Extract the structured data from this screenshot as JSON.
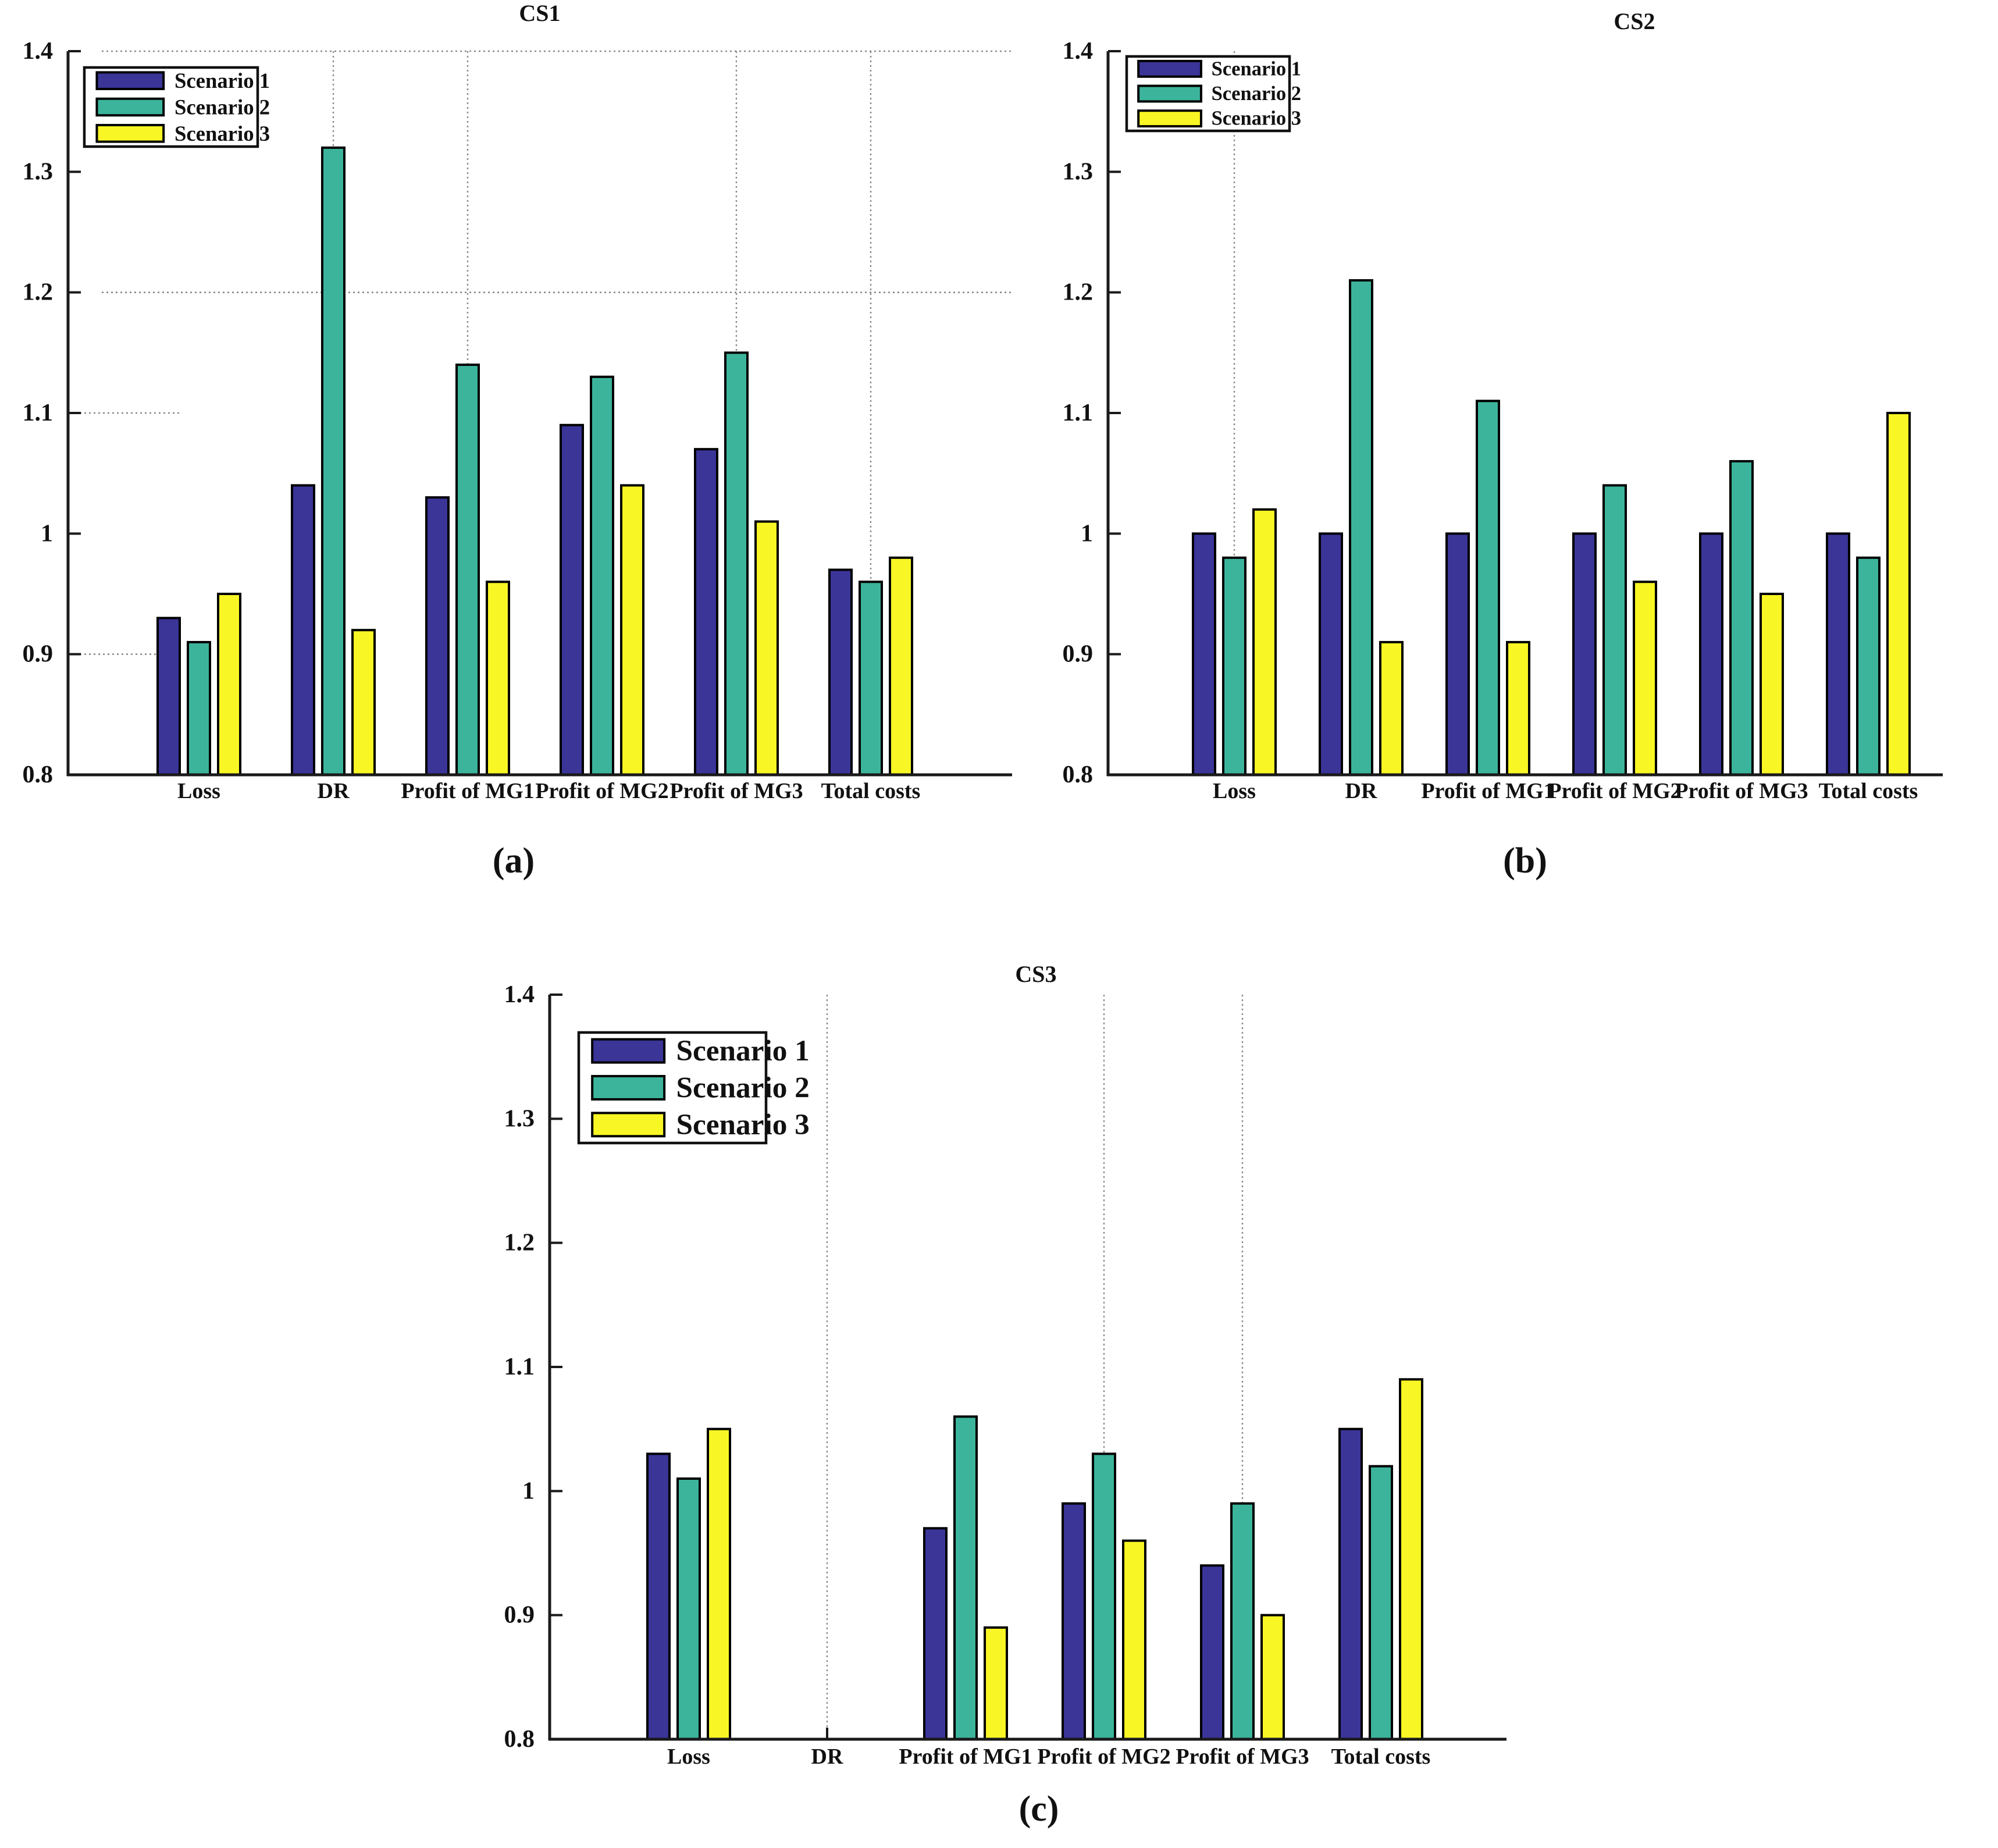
{
  "colors": {
    "scenario1": "#3B3598",
    "scenario2": "#3CB49C",
    "scenario3": "#F8F625",
    "bar_outline": "#000000",
    "axis": "#1a1a1a",
    "grid": "#8a8a8a",
    "background": "#ffffff"
  },
  "legend": {
    "entries": [
      "Scenario 1",
      "Scenario 2",
      "Scenario 3"
    ],
    "position": "top-left-inside"
  },
  "chart_data": [
    {
      "type": "bar",
      "title": "CS1",
      "panel_label": "(a)",
      "xlabel": "",
      "ylabel": "",
      "ylim": [
        0.8,
        1.4
      ],
      "yticks": [
        0.8,
        0.9,
        1.0,
        1.1,
        1.2,
        1.3,
        1.4
      ],
      "ytick_labels": [
        "0.8",
        "0.9",
        "1",
        "1.1",
        "1.2",
        "1.3",
        "1.4"
      ],
      "categories": [
        "Loss",
        "DR",
        "Profit of MG1",
        "Profit of MG2",
        "Profit of MG3",
        "Total costs"
      ],
      "series": [
        {
          "name": "Scenario 1",
          "values": [
            0.93,
            1.04,
            1.03,
            1.09,
            1.07,
            0.97
          ]
        },
        {
          "name": "Scenario 2",
          "values": [
            0.91,
            1.32,
            1.14,
            1.13,
            1.15,
            0.96
          ]
        },
        {
          "name": "Scenario 3",
          "values": [
            0.95,
            0.92,
            0.96,
            1.04,
            1.01,
            0.98
          ]
        }
      ],
      "grid": {
        "h_lines": [
          1.2,
          1.4
        ],
        "h_stub_lines": [
          0.9,
          1.1
        ],
        "v_lines_at": [
          "DR",
          "Profit of MG1",
          "Profit of MG3",
          "Total costs"
        ]
      },
      "legend_visible": true
    },
    {
      "type": "bar",
      "title": "CS2",
      "panel_label": "(b)",
      "xlabel": "",
      "ylabel": "",
      "ylim": [
        0.8,
        1.4
      ],
      "yticks": [
        0.8,
        0.9,
        1.0,
        1.1,
        1.2,
        1.3,
        1.4
      ],
      "ytick_labels": [
        "0.8",
        "0.9",
        "1",
        "1.1",
        "1.2",
        "1.3",
        "1.4"
      ],
      "categories": [
        "Loss",
        "DR",
        "Profit of MG1",
        "Profit of MG2",
        "Profit of MG3",
        "Total costs"
      ],
      "series": [
        {
          "name": "Scenario 1",
          "values": [
            1.0,
            1.0,
            1.0,
            1.0,
            1.0,
            1.0
          ]
        },
        {
          "name": "Scenario 2",
          "values": [
            0.98,
            1.21,
            1.11,
            1.04,
            1.06,
            0.98
          ]
        },
        {
          "name": "Scenario 3",
          "values": [
            1.02,
            0.91,
            0.91,
            0.96,
            0.95,
            1.1
          ]
        }
      ],
      "grid": {
        "h_lines": [],
        "h_stub_lines": [],
        "v_lines_at": [
          "Loss"
        ]
      },
      "legend_visible": true
    },
    {
      "type": "bar",
      "title": "CS3",
      "panel_label": "(c)",
      "xlabel": "",
      "ylabel": "",
      "ylim": [
        0.8,
        1.4
      ],
      "yticks": [
        0.8,
        0.9,
        1.0,
        1.1,
        1.2,
        1.3,
        1.4
      ],
      "ytick_labels": [
        "0.8",
        "0.9",
        "1",
        "1.1",
        "1.2",
        "1.3",
        "1.4"
      ],
      "categories": [
        "Loss",
        "DR",
        "Profit of MG1",
        "Profit of MG2",
        "Profit of MG3",
        "Total costs"
      ],
      "series": [
        {
          "name": "Scenario 1",
          "values": [
            1.03,
            null,
            0.97,
            0.99,
            0.94,
            1.05
          ]
        },
        {
          "name": "Scenario 2",
          "values": [
            1.01,
            null,
            1.06,
            1.03,
            0.99,
            1.02
          ]
        },
        {
          "name": "Scenario 3",
          "values": [
            1.05,
            null,
            0.89,
            0.96,
            0.9,
            1.09
          ]
        }
      ],
      "grid": {
        "h_lines": [],
        "h_stub_lines": [],
        "v_lines_at": [
          "DR",
          "Profit of MG2",
          "Profit of MG3"
        ]
      },
      "legend_visible": true
    }
  ]
}
